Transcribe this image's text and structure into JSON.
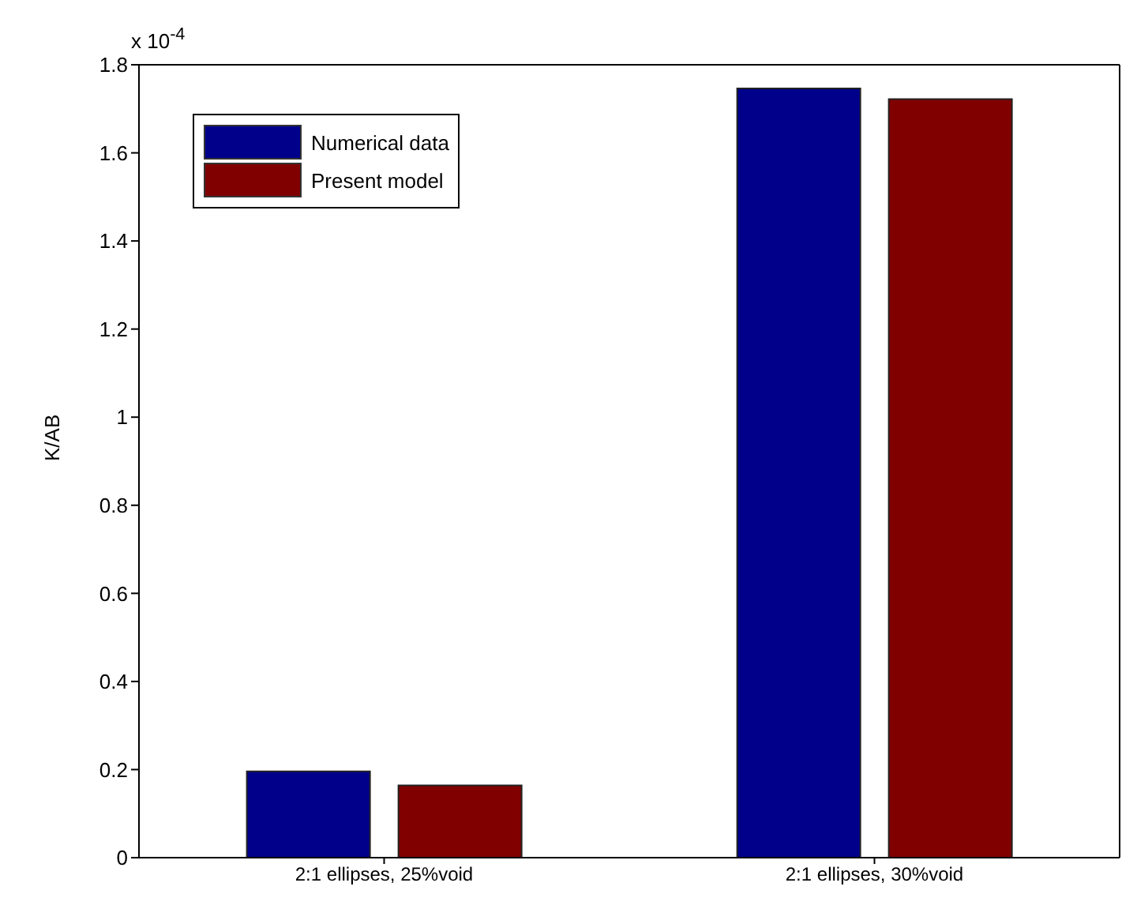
{
  "chart_data": {
    "type": "bar",
    "ylabel": "K/AB",
    "categories": [
      "2:1 ellipses, 25%void",
      "2:1 ellipses, 30%void"
    ],
    "series": [
      {
        "name": "Numerical data",
        "color": "#00008b",
        "values": [
          0.196,
          1.746
        ]
      },
      {
        "name": "Present model",
        "color": "#800000",
        "values": [
          0.164,
          1.722
        ]
      }
    ],
    "ylim": [
      0,
      1.8
    ],
    "yticks": [
      0,
      0.2,
      0.4,
      0.6,
      0.8,
      1,
      1.2,
      1.4,
      1.6,
      1.8
    ],
    "grid": false,
    "legend": "top left",
    "annotations": [
      "x 10$^{-4}$"
    ]
  }
}
